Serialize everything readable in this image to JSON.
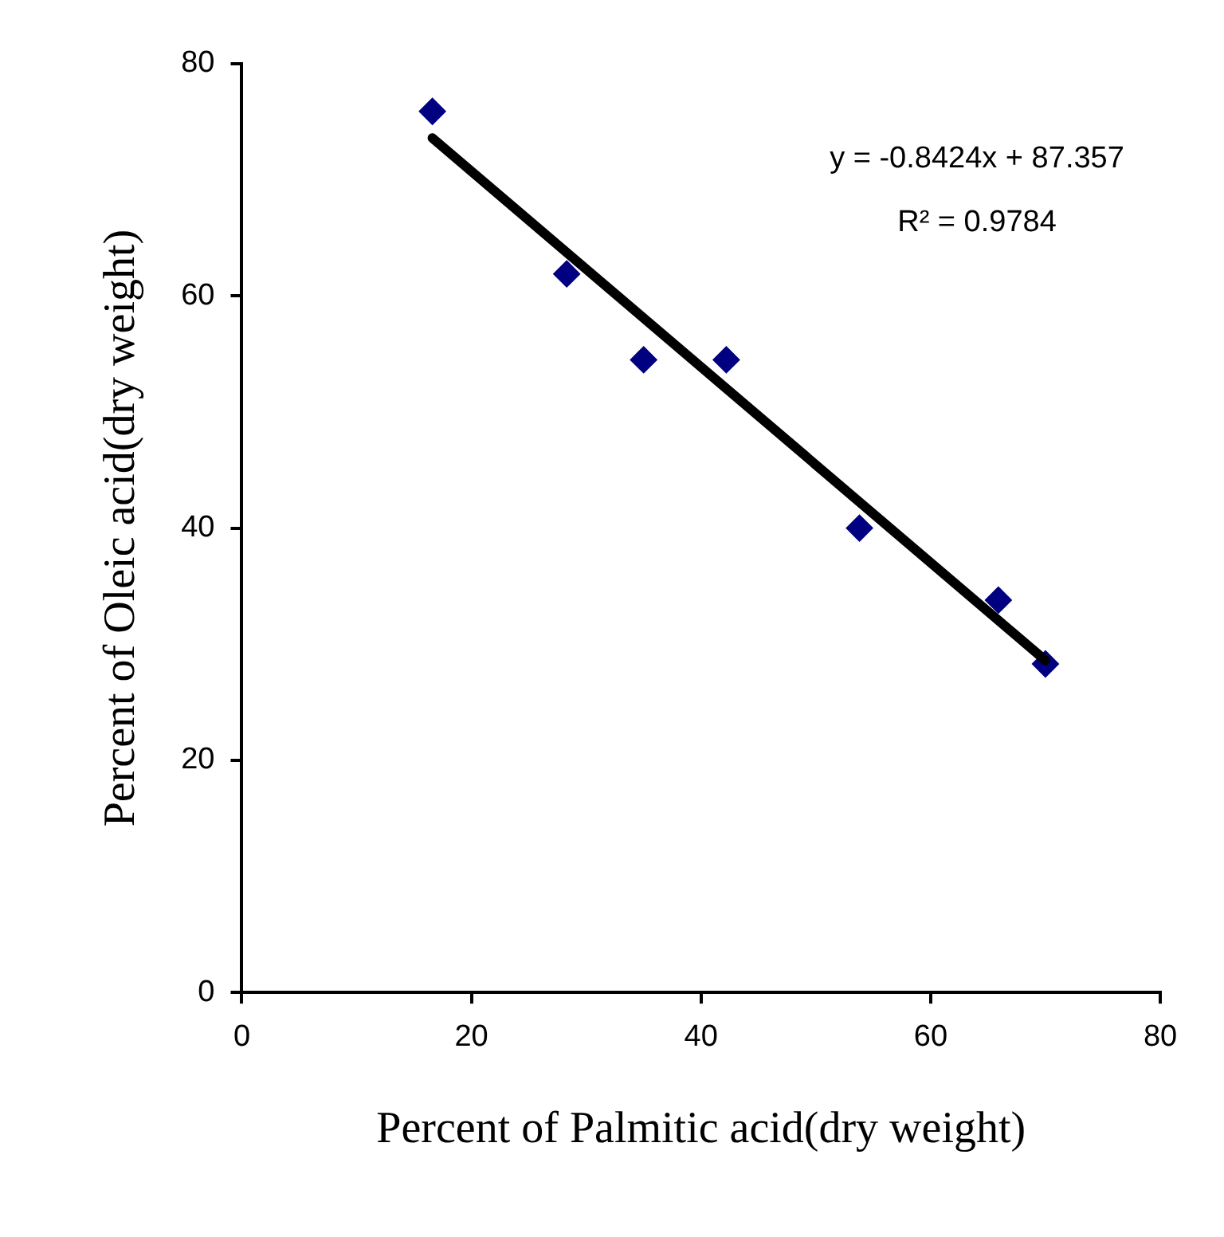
{
  "chart_data": {
    "type": "scatter",
    "xlabel": "Percent of Palmitic acid(dry weight)",
    "ylabel": "Percent of Oleic acid(dry weight)",
    "xlim": [
      0,
      80
    ],
    "xticks": [
      0,
      20,
      40,
      60,
      80
    ],
    "ylim": [
      0,
      80
    ],
    "yticks": [
      0,
      20,
      40,
      60,
      80
    ],
    "grid": false,
    "legend": false,
    "marker": "diamond",
    "series": [
      {
        "color": "#000080",
        "x": [
          16.6,
          28.3,
          35.0,
          42.2,
          53.8,
          65.9,
          70.0
        ],
        "values": [
          75.9,
          61.9,
          54.5,
          54.5,
          40.0,
          33.8,
          28.3
        ]
      },
      {
        "type": "line",
        "color": "#000000",
        "marker": "none",
        "x": [
          16.6,
          70.0
        ],
        "values": [
          73.6,
          28.6
        ]
      }
    ],
    "annotations": [
      "y = -0.8424x + 87.357",
      "R² = 0.9784"
    ]
  }
}
